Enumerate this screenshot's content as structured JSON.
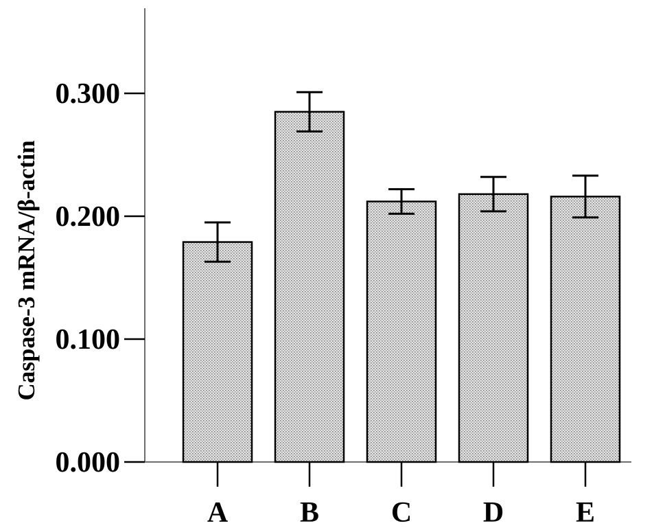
{
  "chart_data": {
    "type": "bar",
    "categories": [
      "A",
      "B",
      "C",
      "D",
      "E"
    ],
    "values": [
      0.179,
      0.285,
      0.212,
      0.218,
      0.216
    ],
    "error": [
      0.016,
      0.016,
      0.01,
      0.014,
      0.017
    ],
    "title": "",
    "xlabel": "",
    "ylabel": "Caspase-3 mRNA/β-actin",
    "ylim": [
      0,
      0.37
    ],
    "yticks": [
      0.0,
      0.1,
      0.2,
      0.3
    ],
    "ytick_labels": [
      "0.000",
      "0.100",
      "0.200",
      "0.300"
    ],
    "grid": false,
    "legend": "none",
    "bar_fill": "#d9d9d9",
    "bar_pattern": "dotted"
  }
}
